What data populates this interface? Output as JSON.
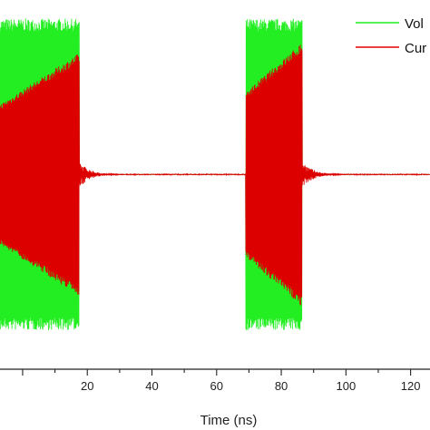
{
  "chart_data": {
    "type": "line",
    "xlabel": "Time (ns)",
    "ylabel": "",
    "xlim": [
      -7,
      126
    ],
    "ylim": [
      -1.25,
      1.12
    ],
    "x_ticks": [
      20,
      40,
      60,
      80,
      100,
      120
    ],
    "grid": false,
    "legend_position": "top-right",
    "series": [
      {
        "name": "Vol",
        "color": "#22ee22",
        "bursts": [
          {
            "start": -7,
            "end": 17.5,
            "amplitude": 1.0
          },
          {
            "start": 69,
            "end": 86.5,
            "amplitude": 1.0
          }
        ],
        "baseline": 0
      },
      {
        "name": "Cur",
        "color": "#dd0000",
        "bursts": [
          {
            "start": -7,
            "end": 17.5,
            "amplitude_start": 0.45,
            "amplitude_end": 0.78
          },
          {
            "start": 69,
            "end": 86.5,
            "amplitude_start": 0.53,
            "amplitude_end": 0.85
          }
        ],
        "ringdown_after": [
          17.5,
          86.5
        ],
        "baseline": 0
      }
    ]
  }
}
